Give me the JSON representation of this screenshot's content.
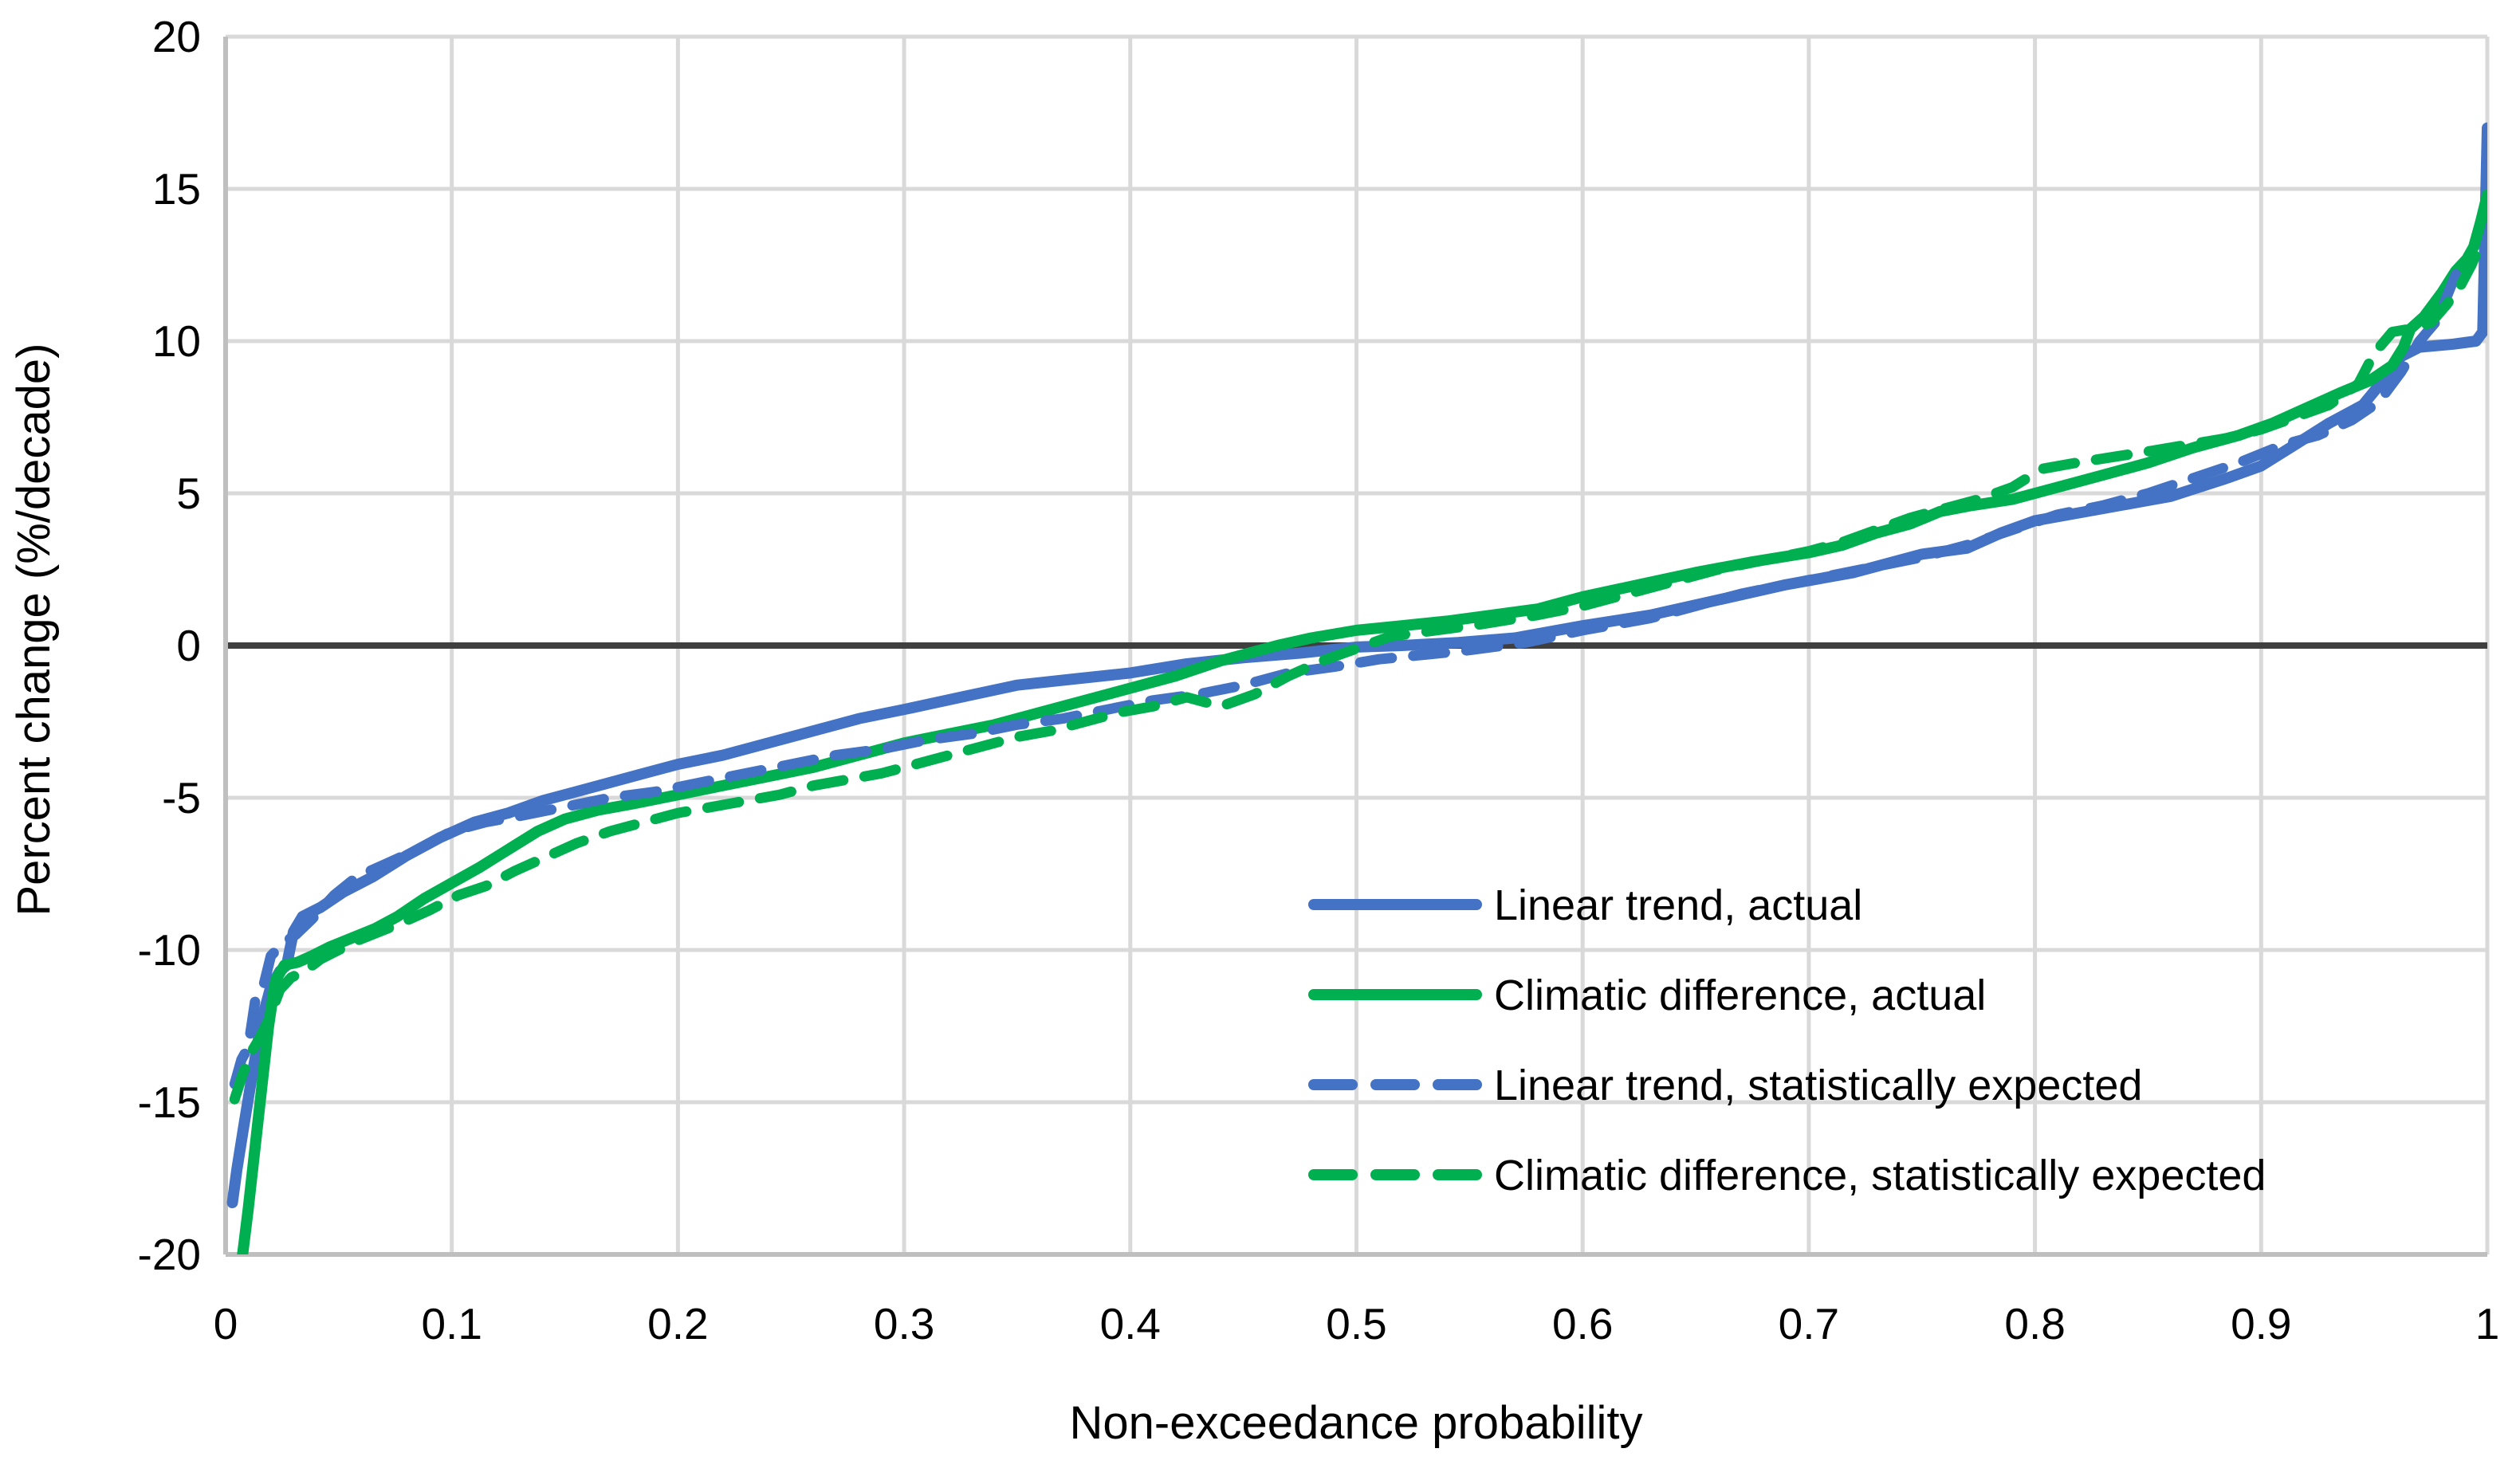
{
  "colors": {
    "blue": "#4472C4",
    "green": "#00B050",
    "gridline": "#D9D9D9",
    "axis_line": "#BFBFBF",
    "zero_line": "#3F3F3F",
    "background": "#FFFFFF",
    "text": "#000000"
  },
  "chart_data": {
    "type": "line",
    "title": "",
    "xlabel": "Non-exceedance probability",
    "ylabel": "Percent change (%/decade)",
    "xlim": [
      0,
      1
    ],
    "ylim": [
      -20,
      20
    ],
    "x_ticks": [
      0,
      0.1,
      0.2,
      0.3,
      0.4,
      0.5,
      0.6,
      0.7,
      0.8,
      0.9,
      1
    ],
    "y_ticks": [
      -20,
      -15,
      -10,
      -5,
      0,
      5,
      10,
      15,
      20
    ],
    "grid": true,
    "zero_line": true,
    "legend_position": "inside-right-middle",
    "series": [
      {
        "name": "Linear trend, actual",
        "color": "#4472C4",
        "style": "solid",
        "points": [
          [
            0.003,
            -18.3
          ],
          [
            0.005,
            -17.2
          ],
          [
            0.008,
            -15.8
          ],
          [
            0.012,
            -14.0
          ],
          [
            0.016,
            -12.3
          ],
          [
            0.02,
            -11.2
          ],
          [
            0.024,
            -10.7
          ],
          [
            0.027,
            -10.5
          ],
          [
            0.03,
            -9.4
          ],
          [
            0.034,
            -8.9
          ],
          [
            0.042,
            -8.6
          ],
          [
            0.052,
            -8.1
          ],
          [
            0.065,
            -7.6
          ],
          [
            0.08,
            -6.9
          ],
          [
            0.095,
            -6.3
          ],
          [
            0.11,
            -5.8
          ],
          [
            0.125,
            -5.5
          ],
          [
            0.14,
            -5.1
          ],
          [
            0.155,
            -4.8
          ],
          [
            0.17,
            -4.5
          ],
          [
            0.185,
            -4.2
          ],
          [
            0.2,
            -3.9
          ],
          [
            0.22,
            -3.6
          ],
          [
            0.24,
            -3.2
          ],
          [
            0.26,
            -2.8
          ],
          [
            0.28,
            -2.4
          ],
          [
            0.3,
            -2.1
          ],
          [
            0.325,
            -1.7
          ],
          [
            0.35,
            -1.3
          ],
          [
            0.375,
            -1.1
          ],
          [
            0.4,
            -0.9
          ],
          [
            0.425,
            -0.6
          ],
          [
            0.45,
            -0.4
          ],
          [
            0.475,
            -0.25
          ],
          [
            0.5,
            -0.05
          ],
          [
            0.52,
            0.0
          ],
          [
            0.545,
            0.1
          ],
          [
            0.57,
            0.25
          ],
          [
            0.6,
            0.65
          ],
          [
            0.63,
            1.0
          ],
          [
            0.66,
            1.5
          ],
          [
            0.69,
            2.0
          ],
          [
            0.72,
            2.4
          ],
          [
            0.75,
            3.0
          ],
          [
            0.77,
            3.2
          ],
          [
            0.785,
            3.7
          ],
          [
            0.8,
            4.1
          ],
          [
            0.83,
            4.5
          ],
          [
            0.86,
            4.9
          ],
          [
            0.885,
            5.5
          ],
          [
            0.9,
            5.9
          ],
          [
            0.915,
            6.6
          ],
          [
            0.93,
            7.3
          ],
          [
            0.945,
            7.9
          ],
          [
            0.955,
            8.8
          ],
          [
            0.962,
            9.5
          ],
          [
            0.97,
            9.8
          ],
          [
            0.985,
            9.9
          ],
          [
            0.995,
            10.0
          ],
          [
            0.998,
            10.3
          ],
          [
            1.0,
            17.0
          ]
        ]
      },
      {
        "name": "Climatic difference, actual",
        "color": "#00B050",
        "style": "solid",
        "points": [
          [
            0.007,
            -20.3
          ],
          [
            0.01,
            -18.5
          ],
          [
            0.013,
            -16.5
          ],
          [
            0.016,
            -14.5
          ],
          [
            0.019,
            -12.5
          ],
          [
            0.022,
            -11.0
          ],
          [
            0.026,
            -10.5
          ],
          [
            0.032,
            -10.4
          ],
          [
            0.038,
            -10.2
          ],
          [
            0.046,
            -9.9
          ],
          [
            0.056,
            -9.6
          ],
          [
            0.066,
            -9.3
          ],
          [
            0.076,
            -8.9
          ],
          [
            0.088,
            -8.3
          ],
          [
            0.1,
            -7.8
          ],
          [
            0.112,
            -7.3
          ],
          [
            0.125,
            -6.7
          ],
          [
            0.138,
            -6.1
          ],
          [
            0.15,
            -5.7
          ],
          [
            0.165,
            -5.4
          ],
          [
            0.18,
            -5.2
          ],
          [
            0.2,
            -4.9
          ],
          [
            0.22,
            -4.6
          ],
          [
            0.24,
            -4.3
          ],
          [
            0.26,
            -4.0
          ],
          [
            0.28,
            -3.6
          ],
          [
            0.3,
            -3.2
          ],
          [
            0.32,
            -2.9
          ],
          [
            0.34,
            -2.6
          ],
          [
            0.36,
            -2.2
          ],
          [
            0.38,
            -1.8
          ],
          [
            0.4,
            -1.4
          ],
          [
            0.42,
            -1.0
          ],
          [
            0.44,
            -0.5
          ],
          [
            0.455,
            -0.2
          ],
          [
            0.465,
            0.0
          ],
          [
            0.48,
            0.25
          ],
          [
            0.5,
            0.5
          ],
          [
            0.52,
            0.65
          ],
          [
            0.54,
            0.8
          ],
          [
            0.56,
            1.0
          ],
          [
            0.58,
            1.2
          ],
          [
            0.6,
            1.6
          ],
          [
            0.625,
            2.0
          ],
          [
            0.65,
            2.4
          ],
          [
            0.675,
            2.75
          ],
          [
            0.7,
            3.05
          ],
          [
            0.715,
            3.3
          ],
          [
            0.73,
            3.7
          ],
          [
            0.745,
            4.0
          ],
          [
            0.758,
            4.4
          ],
          [
            0.772,
            4.6
          ],
          [
            0.79,
            4.8
          ],
          [
            0.81,
            5.2
          ],
          [
            0.83,
            5.6
          ],
          [
            0.85,
            6.0
          ],
          [
            0.87,
            6.5
          ],
          [
            0.89,
            6.9
          ],
          [
            0.905,
            7.3
          ],
          [
            0.92,
            7.8
          ],
          [
            0.935,
            8.3
          ],
          [
            0.948,
            8.7
          ],
          [
            0.958,
            9.2
          ],
          [
            0.963,
            9.8
          ],
          [
            0.966,
            10.4
          ],
          [
            0.972,
            10.8
          ],
          [
            0.98,
            11.6
          ],
          [
            0.986,
            12.3
          ],
          [
            0.991,
            12.7
          ],
          [
            0.994,
            13.1
          ],
          [
            0.997,
            13.9
          ],
          [
            1.0,
            14.8
          ]
        ]
      },
      {
        "name": "Linear trend, statistically expected",
        "color": "#4472C4",
        "style": "dashed",
        "points": [
          [
            0.004,
            -14.4
          ],
          [
            0.007,
            -13.6
          ],
          [
            0.01,
            -13.2
          ],
          [
            0.013,
            -11.7
          ],
          [
            0.016,
            -11.4
          ],
          [
            0.02,
            -10.2
          ],
          [
            0.025,
            -9.8
          ],
          [
            0.031,
            -9.5
          ],
          [
            0.038,
            -9.0
          ],
          [
            0.048,
            -8.2
          ],
          [
            0.058,
            -7.6
          ],
          [
            0.07,
            -7.2
          ],
          [
            0.085,
            -6.7
          ],
          [
            0.1,
            -6.1
          ],
          [
            0.115,
            -5.8
          ],
          [
            0.13,
            -5.6
          ],
          [
            0.15,
            -5.3
          ],
          [
            0.17,
            -5.0
          ],
          [
            0.19,
            -4.8
          ],
          [
            0.21,
            -4.5
          ],
          [
            0.23,
            -4.2
          ],
          [
            0.25,
            -3.9
          ],
          [
            0.27,
            -3.6
          ],
          [
            0.29,
            -3.4
          ],
          [
            0.31,
            -3.1
          ],
          [
            0.33,
            -2.9
          ],
          [
            0.35,
            -2.6
          ],
          [
            0.37,
            -2.4
          ],
          [
            0.39,
            -2.1
          ],
          [
            0.41,
            -1.8
          ],
          [
            0.43,
            -1.6
          ],
          [
            0.45,
            -1.3
          ],
          [
            0.47,
            -0.9
          ],
          [
            0.49,
            -0.7
          ],
          [
            0.51,
            -0.45
          ],
          [
            0.53,
            -0.3
          ],
          [
            0.55,
            -0.15
          ],
          [
            0.575,
            0.1
          ],
          [
            0.6,
            0.5
          ],
          [
            0.63,
            0.9
          ],
          [
            0.65,
            1.3
          ],
          [
            0.67,
            1.7
          ],
          [
            0.69,
            2.0
          ],
          [
            0.71,
            2.3
          ],
          [
            0.73,
            2.6
          ],
          [
            0.75,
            2.9
          ],
          [
            0.77,
            3.3
          ],
          [
            0.79,
            3.8
          ],
          [
            0.81,
            4.3
          ],
          [
            0.83,
            4.6
          ],
          [
            0.85,
            5.0
          ],
          [
            0.87,
            5.5
          ],
          [
            0.89,
            6.0
          ],
          [
            0.91,
            6.6
          ],
          [
            0.925,
            6.9
          ],
          [
            0.94,
            7.4
          ],
          [
            0.952,
            8.0
          ],
          [
            0.962,
            9.0
          ],
          [
            0.97,
            10.0
          ],
          [
            0.978,
            10.7
          ],
          [
            0.985,
            12.0
          ],
          [
            0.99,
            12.8
          ]
        ]
      },
      {
        "name": "Climatic difference, statistically expected",
        "color": "#00B050",
        "style": "dashed",
        "points": [
          [
            0.004,
            -14.9
          ],
          [
            0.007,
            -14.2
          ],
          [
            0.011,
            -13.4
          ],
          [
            0.015,
            -12.9
          ],
          [
            0.019,
            -12.3
          ],
          [
            0.024,
            -11.3
          ],
          [
            0.029,
            -10.9
          ],
          [
            0.035,
            -10.7
          ],
          [
            0.042,
            -10.3
          ],
          [
            0.05,
            -10.0
          ],
          [
            0.058,
            -9.7
          ],
          [
            0.068,
            -9.4
          ],
          [
            0.078,
            -9.1
          ],
          [
            0.09,
            -8.7
          ],
          [
            0.103,
            -8.2
          ],
          [
            0.115,
            -7.9
          ],
          [
            0.128,
            -7.4
          ],
          [
            0.14,
            -7.0
          ],
          [
            0.155,
            -6.5
          ],
          [
            0.17,
            -6.1
          ],
          [
            0.185,
            -5.8
          ],
          [
            0.2,
            -5.5
          ],
          [
            0.215,
            -5.3
          ],
          [
            0.23,
            -5.1
          ],
          [
            0.245,
            -4.9
          ],
          [
            0.26,
            -4.6
          ],
          [
            0.275,
            -4.4
          ],
          [
            0.29,
            -4.2
          ],
          [
            0.305,
            -3.9
          ],
          [
            0.32,
            -3.6
          ],
          [
            0.335,
            -3.3
          ],
          [
            0.35,
            -3.0
          ],
          [
            0.365,
            -2.8
          ],
          [
            0.38,
            -2.5
          ],
          [
            0.395,
            -2.2
          ],
          [
            0.41,
            -2.0
          ],
          [
            0.425,
            -1.7
          ],
          [
            0.44,
            -2.0
          ],
          [
            0.455,
            -1.6
          ],
          [
            0.47,
            -1.0
          ],
          [
            0.485,
            -0.5
          ],
          [
            0.5,
            -0.1
          ],
          [
            0.515,
            0.3
          ],
          [
            0.535,
            0.5
          ],
          [
            0.555,
            0.7
          ],
          [
            0.58,
            1.0
          ],
          [
            0.6,
            1.3
          ],
          [
            0.62,
            1.7
          ],
          [
            0.64,
            2.1
          ],
          [
            0.66,
            2.5
          ],
          [
            0.68,
            2.8
          ],
          [
            0.7,
            3.1
          ],
          [
            0.715,
            3.4
          ],
          [
            0.73,
            3.8
          ],
          [
            0.745,
            4.2
          ],
          [
            0.76,
            4.5
          ],
          [
            0.775,
            4.8
          ],
          [
            0.79,
            5.2
          ],
          [
            0.803,
            5.8
          ],
          [
            0.818,
            6.0
          ],
          [
            0.835,
            6.2
          ],
          [
            0.852,
            6.4
          ],
          [
            0.868,
            6.6
          ],
          [
            0.884,
            6.8
          ],
          [
            0.9,
            7.1
          ],
          [
            0.915,
            7.5
          ],
          [
            0.93,
            7.9
          ],
          [
            0.943,
            8.6
          ],
          [
            0.95,
            9.6
          ],
          [
            0.958,
            10.3
          ],
          [
            0.966,
            10.4
          ],
          [
            0.975,
            10.6
          ],
          [
            0.982,
            11.2
          ],
          [
            0.988,
            11.8
          ],
          [
            0.993,
            12.5
          ],
          [
            0.997,
            13.2
          ]
        ]
      }
    ]
  }
}
